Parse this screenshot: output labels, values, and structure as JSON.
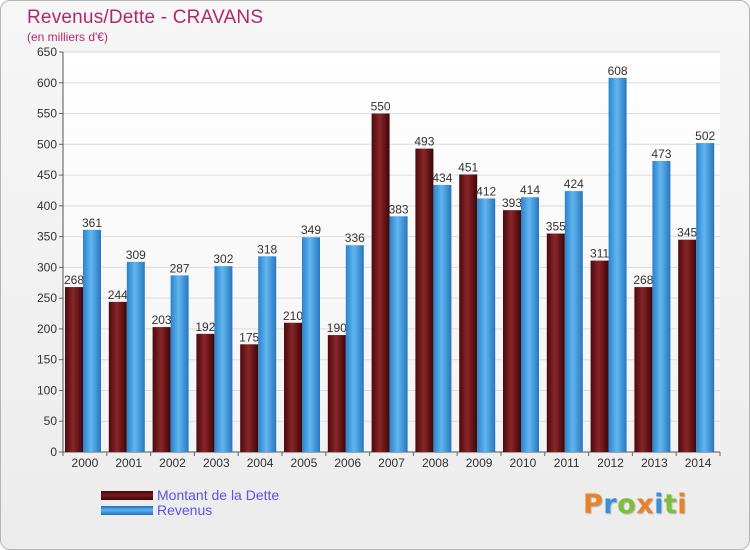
{
  "title": "Revenus/Dette - CRAVANS",
  "subtitle": "(en milliers d'€)",
  "chart_data": {
    "type": "bar",
    "categories": [
      "2000",
      "2001",
      "2002",
      "2003",
      "2004",
      "2005",
      "2006",
      "2007",
      "2008",
      "2009",
      "2010",
      "2011",
      "2012",
      "2013",
      "2014"
    ],
    "series": [
      {
        "name": "Montant de la Dette",
        "color": "#7a1a1d",
        "values": [
          268,
          244,
          203,
          192,
          175,
          210,
          190,
          550,
          493,
          451,
          393,
          355,
          311,
          268,
          345
        ]
      },
      {
        "name": "Revenus",
        "color": "#3d9be0",
        "values": [
          361,
          309,
          287,
          302,
          318,
          349,
          336,
          383,
          434,
          412,
          414,
          424,
          608,
          473,
          502
        ]
      }
    ],
    "ylim": [
      0,
      650
    ],
    "yticks": [
      0,
      50,
      100,
      150,
      200,
      250,
      300,
      350,
      400,
      450,
      500,
      550,
      600,
      650
    ],
    "grid": true,
    "legend_position": "bottom-left"
  },
  "legend": [
    {
      "label": "Montant de la Dette",
      "color": "#7a1a1d"
    },
    {
      "label": "Revenus",
      "color": "#3d9be0"
    }
  ],
  "logo": {
    "text": "Proxiti",
    "letters": [
      {
        "ch": "P",
        "color": "#e8822a"
      },
      {
        "ch": "r",
        "color": "#3a8fd8"
      },
      {
        "ch": "o",
        "color": "#7bbf3a"
      },
      {
        "ch": "x",
        "color": "#e8822a"
      },
      {
        "ch": "i",
        "color": "#3a8fd8"
      },
      {
        "ch": "t",
        "color": "#7bbf3a"
      },
      {
        "ch": "i",
        "color": "#e8822a"
      }
    ]
  }
}
